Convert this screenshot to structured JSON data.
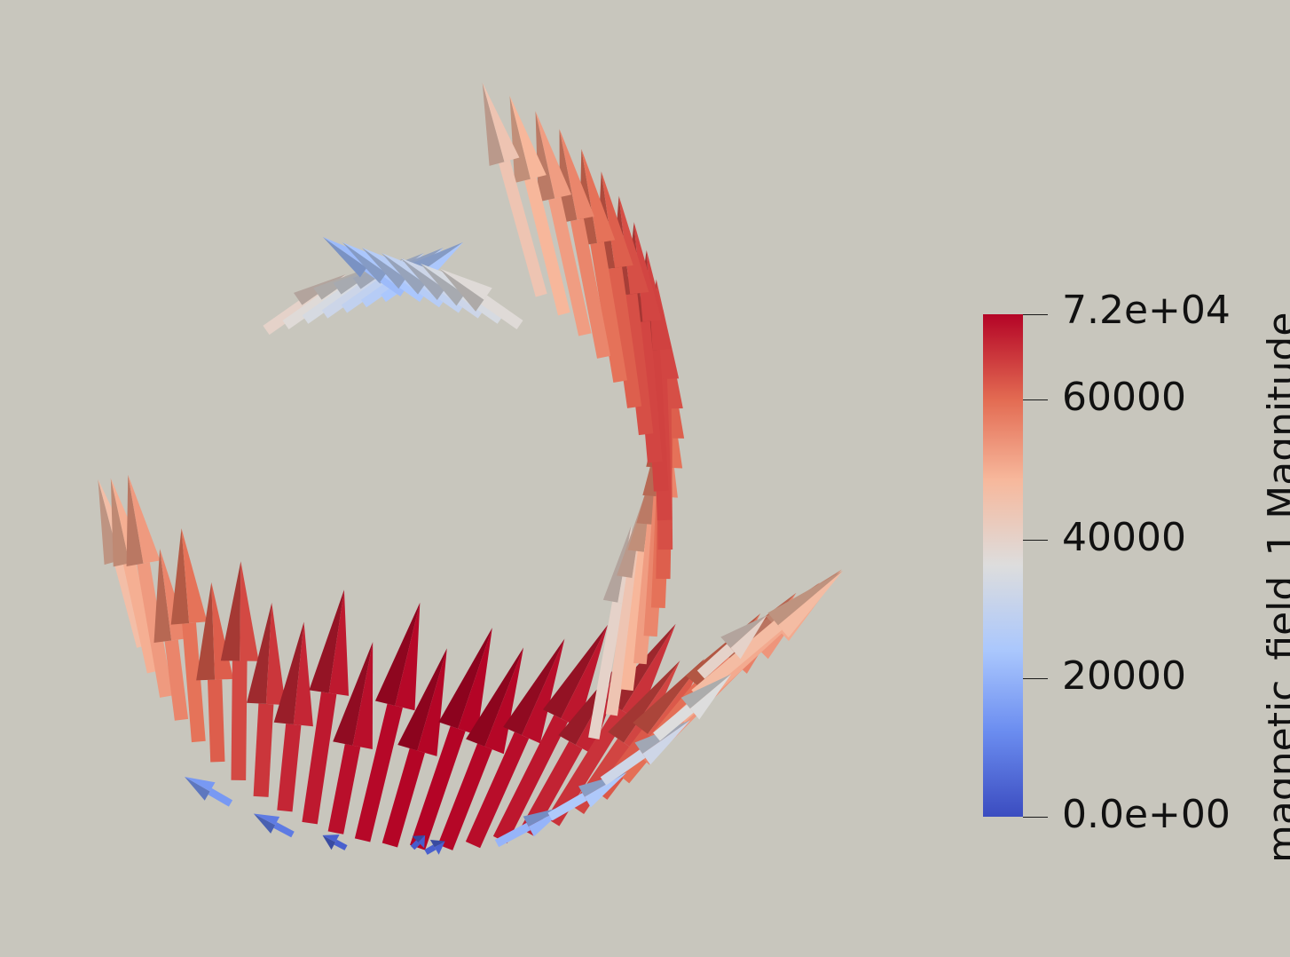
{
  "scalar_bar": {
    "title": "magnetic_field_1 Magnitude",
    "ticks": [
      "7.2e+04",
      "60000",
      "40000",
      "20000",
      "0.0e+00"
    ],
    "tick_values": [
      72000,
      60000,
      40000,
      20000,
      0
    ],
    "range": [
      0,
      72000
    ],
    "colormap": [
      "#3b4cc0",
      "#6b8df0",
      "#aac7fd",
      "#dddddd",
      "#f7b89c",
      "#e36b52",
      "#b40426"
    ]
  },
  "background_color": "#c8c6bd"
}
